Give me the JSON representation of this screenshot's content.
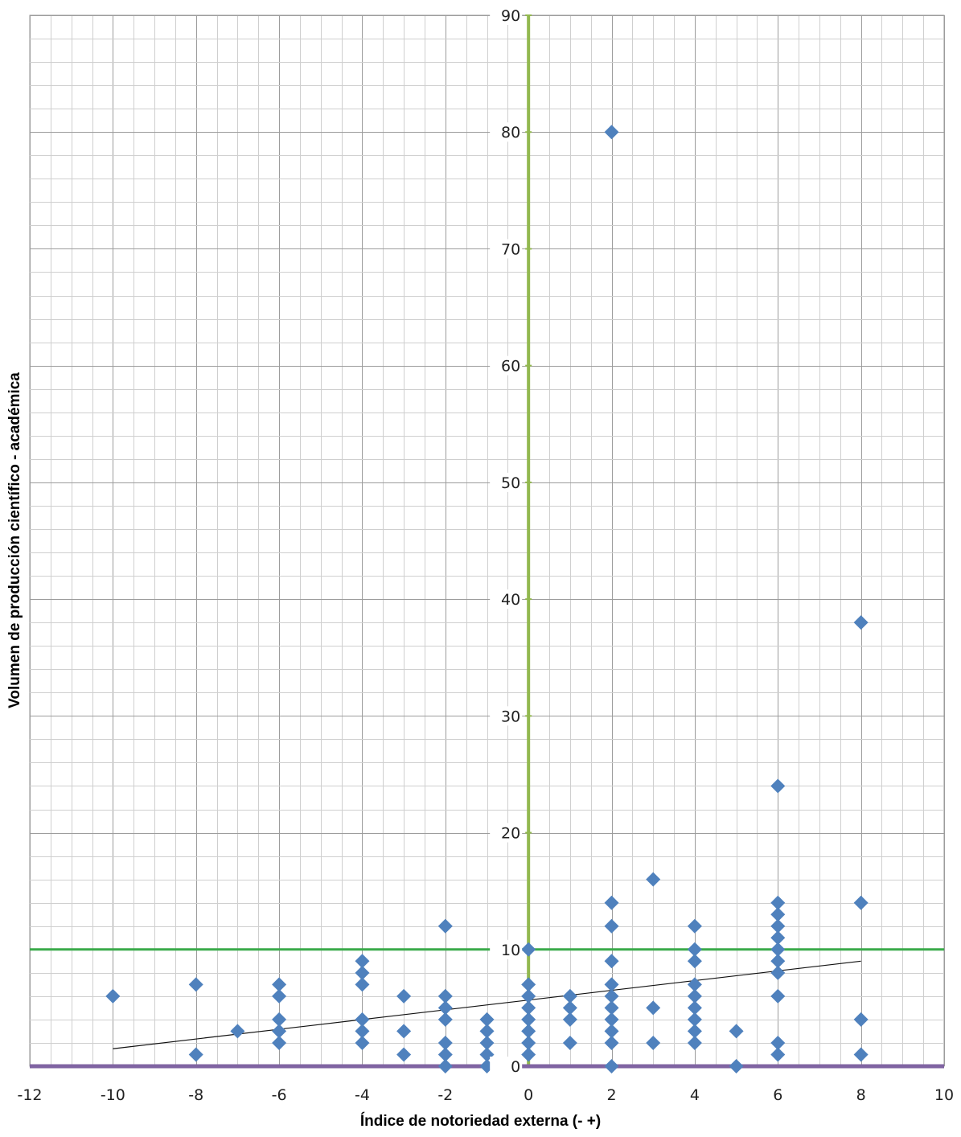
{
  "chart_data": {
    "type": "scatter",
    "xlabel": "Índice de notoriedad externa (- +)",
    "ylabel": "Volumen de producción científico - académica",
    "xlim": [
      -12,
      10
    ],
    "ylim": [
      0,
      90
    ],
    "x_ticks": [
      "-12",
      "-10",
      "-8",
      "-6",
      "-4",
      "-2",
      "0",
      "2",
      "4",
      "6",
      "8",
      "10"
    ],
    "y_ticks": [
      "0",
      "10",
      "20",
      "30",
      "40",
      "50",
      "60",
      "70",
      "80",
      "90"
    ],
    "grid": true,
    "reference_lines": [
      {
        "orientation": "vertical",
        "value": 0,
        "color": "#92b84f"
      },
      {
        "orientation": "horizontal",
        "value": 10,
        "color": "#3aaa4a"
      },
      {
        "orientation": "horizontal",
        "value": 0,
        "color": "#8064a2"
      }
    ],
    "trendline": {
      "x": [
        -10,
        8
      ],
      "y": [
        1.5,
        9
      ],
      "color": "#111111"
    },
    "marker_color": "#4f81bd",
    "points": [
      [
        -10,
        6
      ],
      [
        -8,
        7
      ],
      [
        -8,
        1
      ],
      [
        -7,
        3
      ],
      [
        -6,
        7
      ],
      [
        -6,
        6
      ],
      [
        -6,
        4
      ],
      [
        -6,
        3
      ],
      [
        -6,
        2
      ],
      [
        -4,
        9
      ],
      [
        -4,
        8
      ],
      [
        -4,
        7
      ],
      [
        -4,
        4
      ],
      [
        -4,
        3
      ],
      [
        -4,
        2
      ],
      [
        -3,
        6
      ],
      [
        -3,
        3
      ],
      [
        -3,
        1
      ],
      [
        -2,
        12
      ],
      [
        -2,
        6
      ],
      [
        -2,
        5
      ],
      [
        -2,
        4
      ],
      [
        -2,
        2
      ],
      [
        -2,
        1
      ],
      [
        -2,
        0
      ],
      [
        -1,
        4
      ],
      [
        -1,
        3
      ],
      [
        -1,
        2
      ],
      [
        -1,
        1
      ],
      [
        -1,
        0
      ],
      [
        0,
        10
      ],
      [
        0,
        7
      ],
      [
        0,
        6
      ],
      [
        0,
        5
      ],
      [
        0,
        4
      ],
      [
        0,
        3
      ],
      [
        0,
        2
      ],
      [
        0,
        1
      ],
      [
        1,
        6
      ],
      [
        1,
        5
      ],
      [
        1,
        4
      ],
      [
        1,
        2
      ],
      [
        2,
        80
      ],
      [
        2,
        14
      ],
      [
        2,
        12
      ],
      [
        2,
        9
      ],
      [
        2,
        7
      ],
      [
        2,
        6
      ],
      [
        2,
        5
      ],
      [
        2,
        4
      ],
      [
        2,
        3
      ],
      [
        2,
        2
      ],
      [
        2,
        0
      ],
      [
        3,
        16
      ],
      [
        3,
        5
      ],
      [
        3,
        2
      ],
      [
        4,
        12
      ],
      [
        4,
        10
      ],
      [
        4,
        9
      ],
      [
        4,
        7
      ],
      [
        4,
        6
      ],
      [
        4,
        5
      ],
      [
        4,
        4
      ],
      [
        4,
        3
      ],
      [
        4,
        2
      ],
      [
        5,
        3
      ],
      [
        5,
        0
      ],
      [
        6,
        24
      ],
      [
        6,
        14
      ],
      [
        6,
        13
      ],
      [
        6,
        12
      ],
      [
        6,
        11
      ],
      [
        6,
        10
      ],
      [
        6,
        9
      ],
      [
        6,
        8
      ],
      [
        6,
        6
      ],
      [
        6,
        2
      ],
      [
        6,
        1
      ],
      [
        8,
        38
      ],
      [
        8,
        14
      ],
      [
        8,
        4
      ],
      [
        8,
        1
      ]
    ]
  }
}
